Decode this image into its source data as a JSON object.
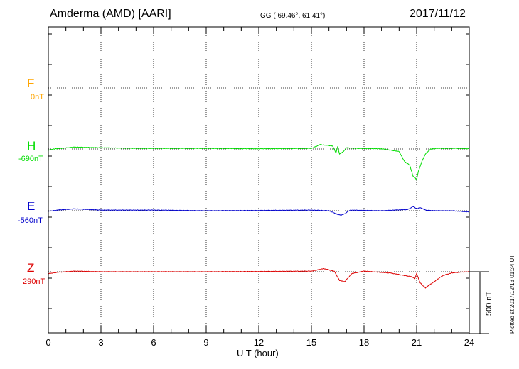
{
  "header": {
    "station": "Amderma (AMD)  [AARI]",
    "coords": "GG ( 69.46°,  61.41°)",
    "date": "2017/11/12"
  },
  "footer": {
    "plotted": "Plotted at 2017/12/13 01:34 UT"
  },
  "chart_data": {
    "type": "line",
    "title": "",
    "xlabel": "U T (hour)",
    "xlim": [
      0,
      24
    ],
    "xticks": [
      "0",
      "3",
      "6",
      "9",
      "12",
      "15",
      "18",
      "21",
      "24"
    ],
    "scale_bar": "500 nT",
    "grid": true,
    "series": [
      {
        "name": "F",
        "baseline": "0nT",
        "color": "#ffa500",
        "x": [],
        "values": []
      },
      {
        "name": "H",
        "baseline": "-690nT",
        "color": "#00dd00",
        "x": [
          0,
          0.3,
          1.5,
          3,
          5,
          9,
          12,
          15,
          15.5,
          16.2,
          16.4,
          16.5,
          16.6,
          16.8,
          17,
          17.5,
          19,
          20,
          20.3,
          20.6,
          20.8,
          20.9,
          21.0,
          21.1,
          21.3,
          21.5,
          21.8,
          22.2,
          22.8,
          23.5,
          24
        ],
        "values": [
          -10,
          0,
          15,
          10,
          5,
          5,
          2,
          5,
          35,
          25,
          -30,
          20,
          -40,
          -25,
          10,
          5,
          2,
          -20,
          -100,
          -130,
          -220,
          -230,
          -250,
          -180,
          -100,
          -40,
          0,
          5,
          5,
          5,
          2
        ]
      },
      {
        "name": "E",
        "baseline": "-560nT",
        "color": "#0000cc",
        "x": [
          0,
          0.5,
          1.5,
          3,
          6,
          9,
          12,
          15,
          16,
          16.5,
          16.7,
          16.9,
          17.2,
          19,
          20.5,
          20.8,
          21.0,
          21.2,
          21.5,
          22,
          23,
          24
        ],
        "values": [
          -5,
          5,
          15,
          5,
          5,
          0,
          2,
          5,
          0,
          -30,
          -35,
          -25,
          5,
          0,
          10,
          35,
          15,
          25,
          5,
          0,
          0,
          -10
        ]
      },
      {
        "name": "Z",
        "baseline": "290nT",
        "color": "#dd0000",
        "x": [
          0,
          0.5,
          1.5,
          3,
          6,
          9,
          12,
          15,
          15.7,
          16.3,
          16.6,
          16.9,
          17.3,
          18,
          19.5,
          20.3,
          20.7,
          20.9,
          21.0,
          21.2,
          21.5,
          22,
          22.5,
          23,
          23.5,
          24
        ],
        "values": [
          -15,
          -5,
          5,
          0,
          0,
          0,
          2,
          5,
          25,
          5,
          -70,
          -80,
          -15,
          5,
          -10,
          -30,
          -40,
          -55,
          -15,
          -90,
          -130,
          -80,
          -30,
          -10,
          -3,
          0
        ]
      }
    ]
  }
}
